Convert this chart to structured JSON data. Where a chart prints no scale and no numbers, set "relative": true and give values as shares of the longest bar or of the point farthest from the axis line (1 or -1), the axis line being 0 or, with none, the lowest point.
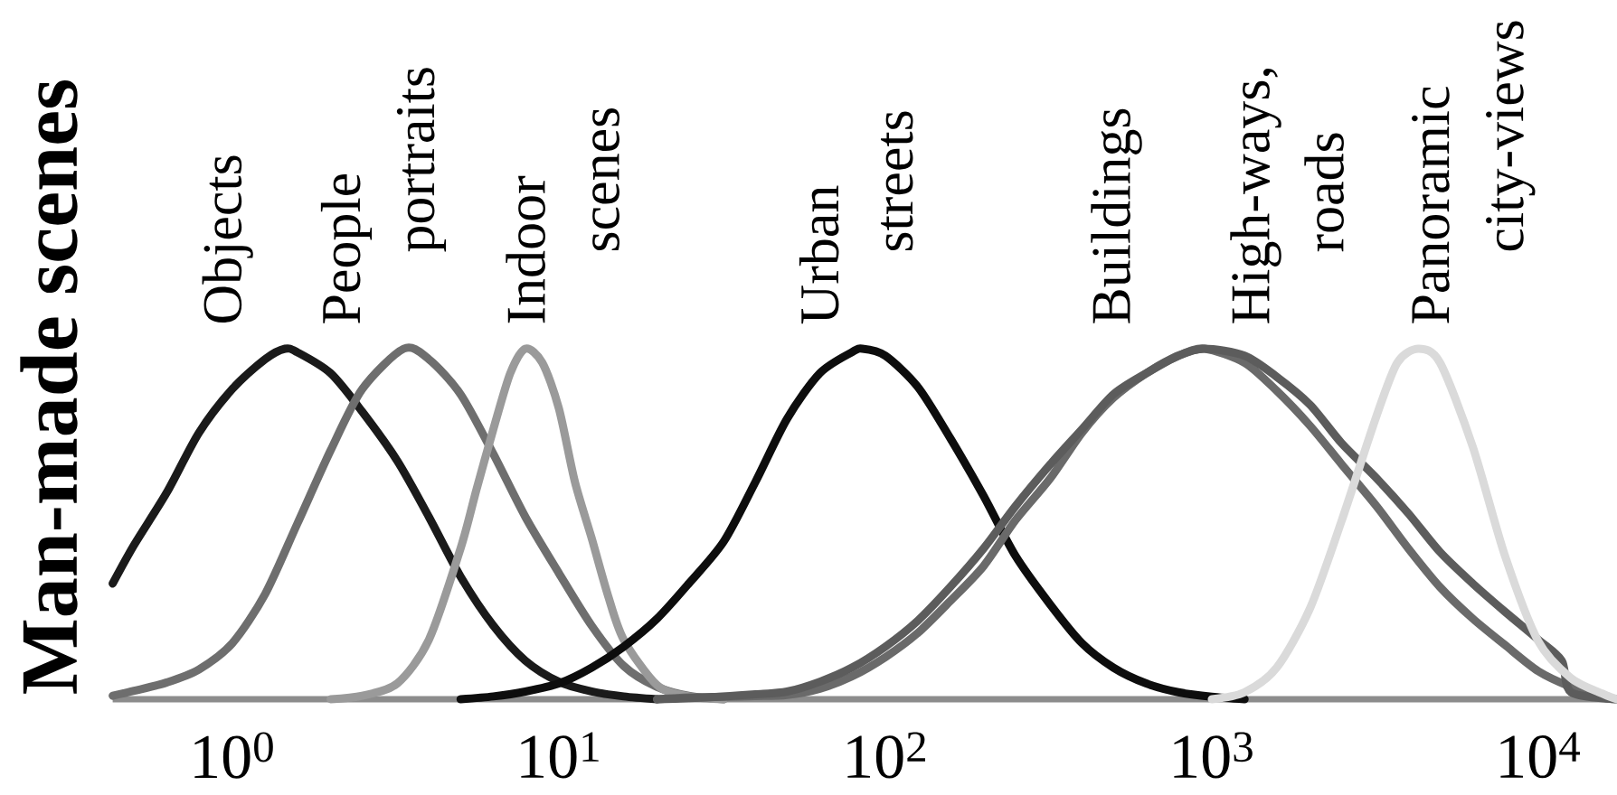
{
  "chart_data": {
    "type": "line",
    "ylabel": "Man-made scenes",
    "relative": true,
    "log": "x",
    "xlim": [
      0.43,
      17400
    ],
    "xticks": [
      {
        "value": 1,
        "label": "10$^{0}$"
      },
      {
        "value": 10,
        "label": "10$^{1}$"
      },
      {
        "value": 100,
        "label": "10$^{2}$"
      },
      {
        "value": 1000,
        "label": "10$^{3}$"
      },
      {
        "value": 10000,
        "label": "10$^{4}$"
      }
    ],
    "series": [
      {
        "name": "Objects",
        "color": "#1a1a1a",
        "x": [
          0.43,
          0.5,
          0.63,
          0.79,
          1,
          1.26,
          1.45,
          1.58,
          2,
          2.5,
          3.2,
          4,
          5,
          6.3,
          7.9,
          10,
          12.6,
          15.8,
          20
        ],
        "values": [
          0.33,
          0.44,
          0.59,
          0.76,
          0.885,
          0.97,
          1,
          0.99,
          0.93,
          0.82,
          0.68,
          0.52,
          0.35,
          0.21,
          0.11,
          0.05,
          0.022,
          0.008,
          0
        ]
      },
      {
        "name": "People portraits",
        "color": "#6e6e6e",
        "x": [
          0.43,
          0.5,
          0.63,
          0.79,
          1,
          1.26,
          1.58,
          2,
          2.5,
          3.35,
          4,
          5,
          6.3,
          7.9,
          10,
          12.6,
          15.8,
          20,
          25,
          32
        ],
        "values": [
          0.01,
          0.024,
          0.048,
          0.085,
          0.16,
          0.3,
          0.5,
          0.71,
          0.885,
          1,
          0.97,
          0.87,
          0.7,
          0.52,
          0.36,
          0.21,
          0.095,
          0.035,
          0.01,
          0
        ]
      },
      {
        "name": "Indoor scenes",
        "color": "#9a9a9a",
        "x": [
          2,
          2.5,
          3.2,
          4,
          5,
          5.6,
          6.3,
          7.1,
          7.9,
          8.9,
          10,
          11.2,
          12.6,
          14.1,
          15.8,
          20,
          25,
          32
        ],
        "values": [
          0,
          0.01,
          0.045,
          0.17,
          0.43,
          0.6,
          0.77,
          0.93,
          1,
          0.96,
          0.83,
          0.62,
          0.46,
          0.3,
          0.17,
          0.04,
          0.008,
          0
        ]
      },
      {
        "name": "Urban streets",
        "color": "#0d0d0d",
        "x": [
          5,
          6.3,
          7.9,
          10,
          12.6,
          15.8,
          20,
          25,
          32,
          40,
          50,
          63,
          79,
          85,
          100,
          126,
          158,
          200,
          250,
          320,
          400,
          500,
          630,
          790,
          1000,
          1260
        ],
        "values": [
          0,
          0.008,
          0.022,
          0.045,
          0.09,
          0.15,
          0.23,
          0.33,
          0.45,
          0.62,
          0.8,
          0.93,
          0.99,
          1,
          0.98,
          0.89,
          0.745,
          0.58,
          0.41,
          0.27,
          0.16,
          0.09,
          0.045,
          0.02,
          0.007,
          0
        ]
      },
      {
        "name": "Buildings",
        "color": "#6a6a6a",
        "x": [
          20,
          25,
          32,
          40,
          50,
          63,
          79,
          100,
          126,
          158,
          200,
          250,
          320,
          400,
          500,
          630,
          790,
          950,
          1260,
          1580,
          2000,
          2500,
          3200,
          4000,
          5000,
          6300,
          7900,
          10000,
          12600,
          15800,
          17400
        ],
        "values": [
          0,
          0.005,
          0.007,
          0.009,
          0.012,
          0.03,
          0.065,
          0.12,
          0.19,
          0.28,
          0.38,
          0.51,
          0.63,
          0.76,
          0.86,
          0.93,
          0.98,
          1,
          0.96,
          0.88,
          0.78,
          0.67,
          0.55,
          0.43,
          0.32,
          0.23,
          0.155,
          0.08,
          0.035,
          0.005,
          0
        ]
      },
      {
        "name": "High-ways, roads",
        "color": "#5c5c5c",
        "x": [
          20,
          25,
          32,
          40,
          50,
          63,
          79,
          100,
          126,
          158,
          200,
          250,
          320,
          400,
          500,
          630,
          790,
          950,
          1260,
          1580,
          2000,
          2500,
          3200,
          4000,
          5000,
          6300,
          7900,
          10000,
          11800,
          12600,
          17400
        ],
        "values": [
          0,
          0.003,
          0.008,
          0.014,
          0.022,
          0.05,
          0.09,
          0.15,
          0.225,
          0.32,
          0.43,
          0.55,
          0.67,
          0.77,
          0.87,
          0.93,
          0.98,
          1,
          0.98,
          0.92,
          0.84,
          0.73,
          0.63,
          0.53,
          0.42,
          0.33,
          0.25,
          0.17,
          0.11,
          0.02,
          0
        ]
      },
      {
        "name": "Panoramic city-views",
        "color": "#dadada",
        "x": [
          1000,
          1260,
          1580,
          2000,
          2500,
          3200,
          3700,
          4300,
          5000,
          6300,
          7900,
          10000,
          12600,
          15800,
          17400
        ],
        "values": [
          0,
          0.02,
          0.09,
          0.26,
          0.51,
          0.81,
          0.96,
          1,
          0.96,
          0.72,
          0.41,
          0.165,
          0.06,
          0.015,
          0
        ]
      }
    ]
  }
}
